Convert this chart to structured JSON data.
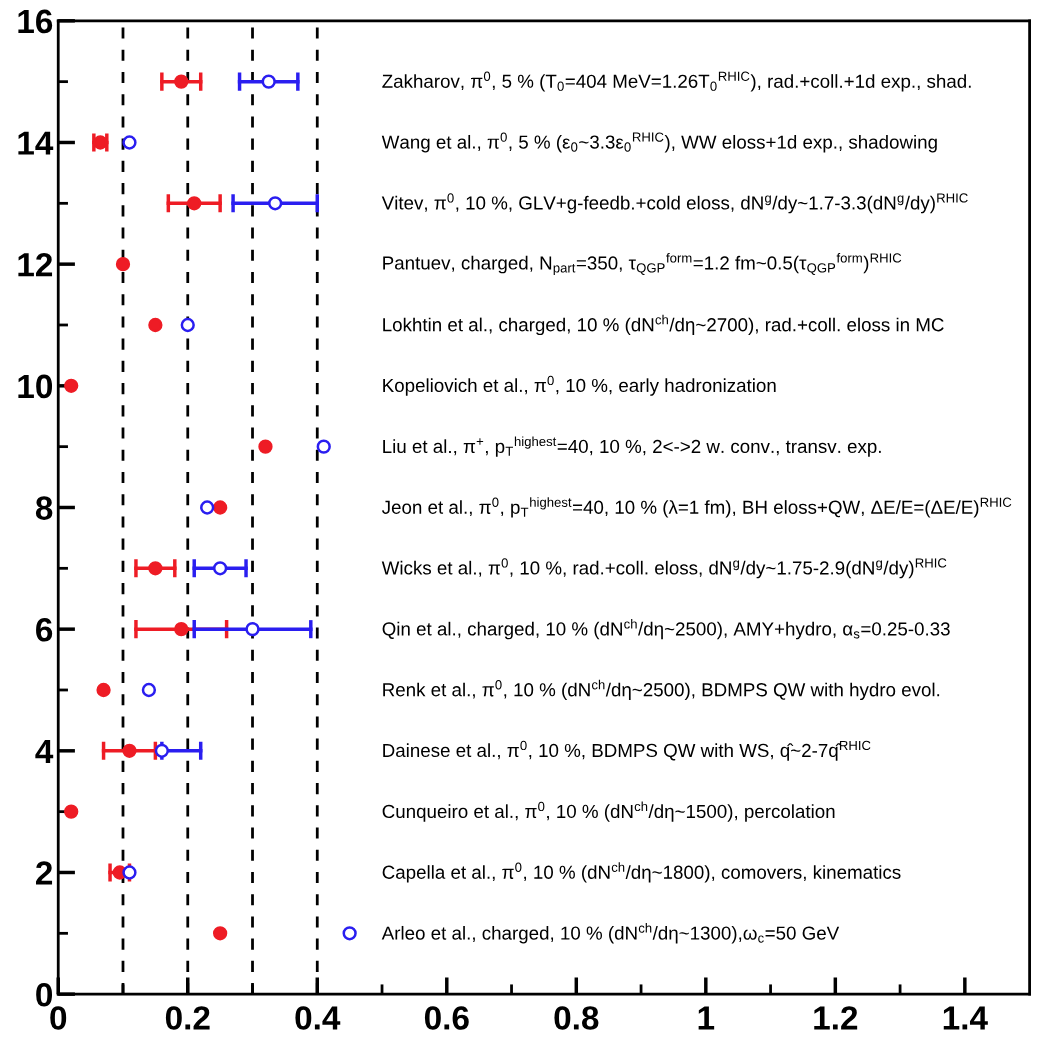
{
  "chart_data": {
    "type": "scatter",
    "series": [
      {
        "color": "#ee1c25",
        "marker": "circle",
        "x": [
          0.25,
          0.095,
          0.02,
          0.11,
          0.07,
          0.19,
          0.15,
          0.25,
          0.32,
          0.02,
          0.15,
          0.1,
          0.21,
          0.065,
          0.19
        ],
        "values": [
          1,
          2,
          3,
          4,
          5,
          6,
          7,
          8,
          9,
          10,
          11,
          12,
          13,
          14,
          15
        ],
        "xerrors": [
          null,
          [
            0.08,
            0.11
          ],
          null,
          [
            0.07,
            0.15
          ],
          null,
          [
            0.12,
            0.26
          ],
          [
            0.12,
            0.18
          ],
          null,
          null,
          null,
          null,
          null,
          [
            0.17,
            0.25
          ],
          [
            0.055,
            0.075
          ],
          [
            0.16,
            0.22
          ]
        ]
      },
      {
        "color": "#2a1ef0",
        "marker": "open circle",
        "x": [
          0.45,
          0.11,
          0.16,
          0.14,
          0.3,
          0.25,
          0.23,
          0.41,
          0.2,
          0.335,
          0.11,
          0.325
        ],
        "values": [
          1,
          2,
          4,
          5,
          6,
          7,
          8,
          9,
          11,
          13,
          14,
          15
        ],
        "xerrors": [
          null,
          null,
          [
            0.16,
            0.22
          ],
          null,
          [
            0.21,
            0.39
          ],
          [
            0.21,
            0.29
          ],
          null,
          null,
          null,
          [
            0.27,
            0.4
          ],
          null,
          [
            0.28,
            0.37
          ]
        ]
      }
    ],
    "xlim": [
      0,
      1.5
    ],
    "ylim": [
      0,
      16
    ],
    "xticks": [
      0,
      {
        "value": 0.1,
        "label": null
      },
      {
        "value": 0.2,
        "label": "0.2"
      },
      {
        "value": 0.3,
        "label": null
      },
      {
        "value": 0.4,
        "label": "0.4"
      },
      {
        "value": 0.5,
        "label": null
      },
      {
        "value": 0.6,
        "label": "0.6"
      },
      {
        "value": 0.7,
        "label": null
      },
      {
        "value": 0.8,
        "label": "0.8"
      },
      {
        "value": 0.9,
        "label": null
      },
      1,
      {
        "value": 1.1,
        "label": null
      },
      {
        "value": 1.2,
        "label": "1.2"
      },
      {
        "value": 1.3,
        "label": null
      },
      {
        "value": 1.4,
        "label": "1.4"
      }
    ],
    "yticks": [
      0,
      {
        "value": 1,
        "label": null
      },
      2,
      {
        "value": 3,
        "label": null
      },
      4,
      {
        "value": 5,
        "label": null
      },
      6,
      {
        "value": 7,
        "label": null
      },
      8,
      {
        "value": 9,
        "label": null
      },
      10,
      {
        "value": 11,
        "label": null
      },
      12,
      {
        "value": 13,
        "label": null
      },
      14,
      {
        "value": 15,
        "label": null
      },
      16
    ],
    "ref_lines": [
      {
        "axis": "x",
        "value": 0.1,
        "color": "#000000",
        "line_style": "dashed"
      },
      {
        "axis": "x",
        "value": 0.2,
        "color": "#000000",
        "line_style": "dashed"
      },
      {
        "axis": "x",
        "value": 0.3,
        "color": "#000000",
        "line_style": "dashed"
      },
      {
        "axis": "x",
        "value": 0.4,
        "color": "#000000",
        "line_style": "dashed"
      }
    ],
    "grid": false,
    "legend": false,
    "annotations": [
      "Arleo et al., charged, 10 % (dN$^{ch}$/dη~1300),ω$_{c}$=50 GeV",
      "Capella et al., π$^{0}$, 10 % (dN$^{ch}$/dη~1800), comovers, kinematics",
      "Cunqueiro et al., π$^{0}$, 10 % (dN$^{ch}$/dη~1500), percolation",
      "Dainese et al., π$^{0}$, 10 %, BDMPS QW with WS, q̂~2-7q̂$^{RHIC}$",
      "Renk et al., π$^{0}$, 10 % (dN$^{ch}$/dη~2500), BDMPS QW with hydro evol.",
      "Qin et al., charged, 10 % (dN$^{ch}$/dη~2500), AMY+hydro, α$_{s}$=0.25-0.33",
      "Wicks et al., π$^{0}$, 10 %, rad.+coll. eloss, dN$^{g}$/dy~1.75-2.9(dN$^{g}$/dy)$^{RHIC}$",
      "Jeon et al., π$^{0}$, p$_{T}$$^{highest}$=40, 10 % (λ=1 fm), BH eloss+QW, ΔE/E=(ΔE/E)$^{RHIC}$",
      "Liu et al., π$^{+}$, p$_{T}$$^{highest}$=40, 10 %, 2<->2 w. conv., transv. exp.",
      "Kopeliovich et al., π$^{0}$, 10 %, early hadronization",
      "Lokhtin et al., charged, 10 % (dN$^{ch}$/dη~2700), rad.+coll. eloss in MC",
      "Pantuev, charged, N$_{part}$=350, τ$_{QGP}$$^{form}$=1.2 fm~0.5(τ$_{QGP}$$^{form}$)$^{RHIC}$",
      "Vitev, π$^{0}$, 10 %, GLV+g-feedb.+cold eloss, dN$^{g}$/dy~1.7-3.3(dN$^{g}$/dy)$^{RHIC}$",
      "Wang et al., π$^{0}$, 5 % (ε$_{0}$~3.3ε$_{0}$$^{RHIC}$), WW eloss+1d exp., shadowing",
      "Zakharov, π$^{0}$, 5 % (T$_{0}$=404 MeV=1.26T$_{0}$$^{RHIC}$), rad.+coll.+1d exp., shad."
    ]
  }
}
